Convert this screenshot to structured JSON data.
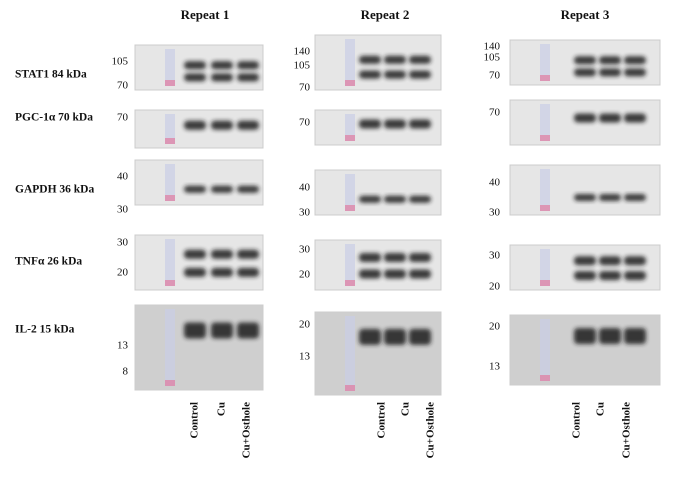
{
  "columns": [
    {
      "title": "Repeat 1",
      "lane_labels": [
        "Control",
        "Cu",
        "Cu+Osthole"
      ],
      "blots": [
        {
          "markers": [
            "105",
            "70"
          ]
        },
        {
          "markers": [
            "70"
          ]
        },
        {
          "markers": [
            "40",
            "30"
          ]
        },
        {
          "markers": [
            "30",
            "20"
          ]
        },
        {
          "markers": [
            "13",
            "8"
          ]
        }
      ]
    },
    {
      "title": "Repeat 2",
      "lane_labels": [
        "Control",
        "Cu",
        "Cu+Osthole"
      ],
      "blots": [
        {
          "markers": [
            "140",
            "105",
            "70"
          ]
        },
        {
          "markers": [
            "70"
          ]
        },
        {
          "markers": [
            "40",
            "30"
          ]
        },
        {
          "markers": [
            "30",
            "20"
          ]
        },
        {
          "markers": [
            "20",
            "13"
          ]
        }
      ]
    },
    {
      "title": "Repeat 3",
      "lane_labels": [
        "Control",
        "Cu",
        "Cu+Osthole"
      ],
      "blots": [
        {
          "markers": [
            "140",
            "105",
            "70"
          ]
        },
        {
          "markers": [
            "70"
          ]
        },
        {
          "markers": [
            "40",
            "30"
          ]
        },
        {
          "markers": [
            "30",
            "20"
          ]
        },
        {
          "markers": [
            "20",
            "13"
          ]
        }
      ]
    }
  ],
  "rows": [
    "STAT1 84 kDa",
    "PGC-1α 70 kDa",
    "GAPDH 36 kDa",
    "TNFα 26 kDa",
    "IL-2 15 kDa"
  ]
}
